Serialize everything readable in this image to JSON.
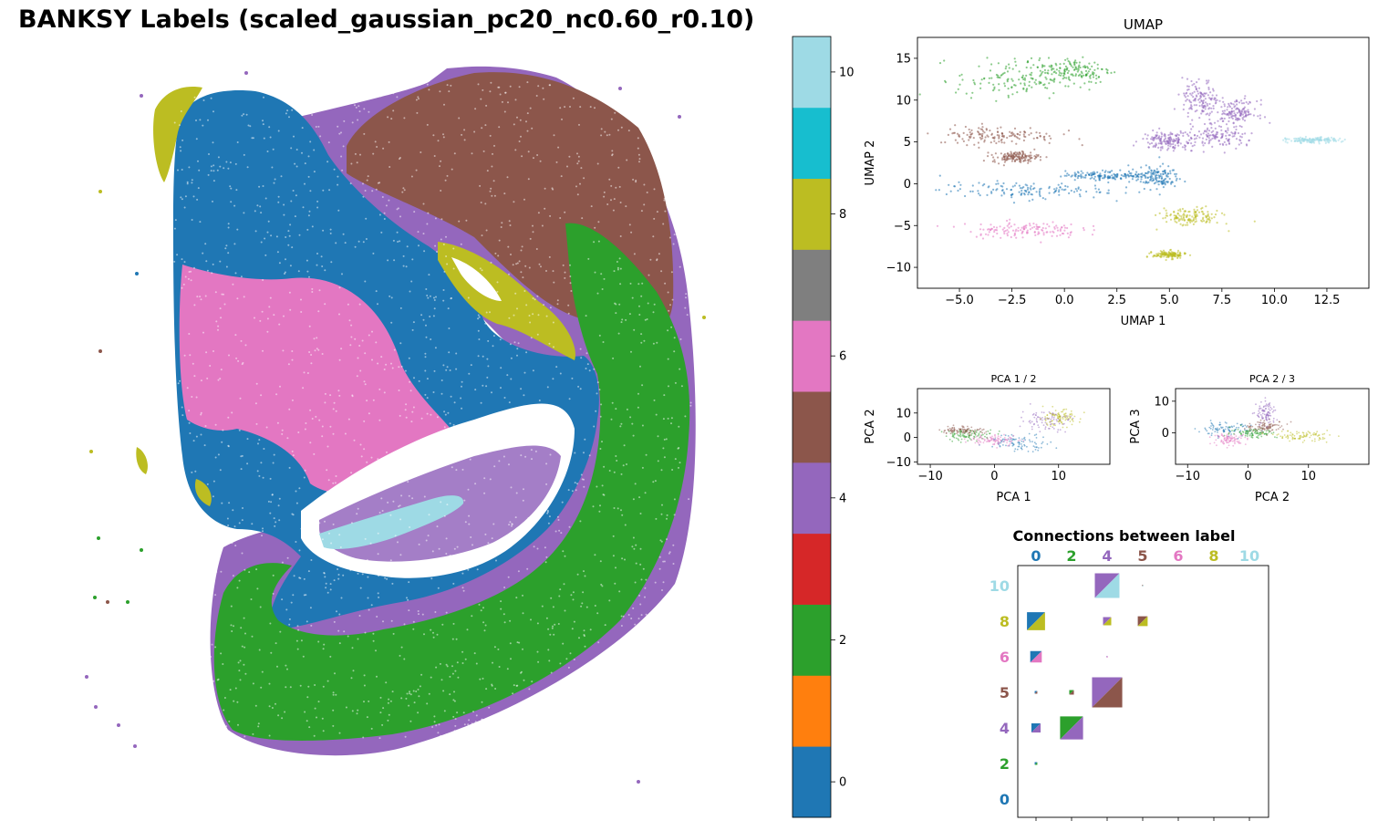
{
  "title": "BANKSY Labels (scaled_gaussian_pc20_nc0.60_r0.10)",
  "chart_data": [
    {
      "type": "scatter",
      "panel": "spatial",
      "title": "BANKSY Labels (scaled_gaussian_pc20_nc0.60_r0.10)",
      "xlabel": "",
      "ylabel": "",
      "axes_visible": false,
      "regions": [
        {
          "label": 4,
          "color": "#9467bd",
          "description": "outer rim"
        },
        {
          "label": 5,
          "color": "#8c564b"
        },
        {
          "label": 0,
          "color": "#1f77b4"
        },
        {
          "label": 6,
          "color": "#e377c2"
        },
        {
          "label": 2,
          "color": "#2ca02c"
        },
        {
          "label": 8,
          "color": "#bcbd22"
        },
        {
          "label": 10,
          "color": "#9edae5"
        }
      ]
    },
    {
      "type": "colorbar",
      "panel": "colorbar",
      "range": [
        -0.5,
        10.5
      ],
      "segments": [
        {
          "label": 0,
          "color": "#1f77b4"
        },
        {
          "label": 1,
          "color": "#ff7f0e"
        },
        {
          "label": 2,
          "color": "#2ca02c"
        },
        {
          "label": 3,
          "color": "#d62728"
        },
        {
          "label": 4,
          "color": "#9467bd"
        },
        {
          "label": 5,
          "color": "#8c564b"
        },
        {
          "label": 6,
          "color": "#e377c2"
        },
        {
          "label": 7,
          "color": "#7f7f7f"
        },
        {
          "label": 8,
          "color": "#bcbd22"
        },
        {
          "label": 9,
          "color": "#17becf"
        },
        {
          "label": 10,
          "color": "#9edae5"
        }
      ],
      "ticks": [
        0,
        2,
        4,
        6,
        8,
        10
      ]
    },
    {
      "type": "scatter",
      "panel": "umap",
      "title": "UMAP",
      "xlabel": "UMAP 1",
      "ylabel": "UMAP 2",
      "xlim": [
        -7,
        14.5
      ],
      "ylim": [
        -12.5,
        17.5
      ],
      "xticks": [
        -5.0,
        -2.5,
        0.0,
        2.5,
        5.0,
        7.5,
        10.0,
        12.5
      ],
      "yticks": [
        -10,
        -5,
        0,
        5,
        10,
        15
      ],
      "clusters": [
        {
          "label": 2,
          "color": "#2ca02c",
          "x": -2.5,
          "y": 12.5,
          "sx": 2.4,
          "sy": 2.2
        },
        {
          "label": 2,
          "color": "#2ca02c",
          "x": 0.5,
          "y": 13.5,
          "sx": 1.6,
          "sy": 1.4
        },
        {
          "label": 5,
          "color": "#8c564b",
          "x": -3.2,
          "y": 5.8,
          "sx": 2.6,
          "sy": 1.0
        },
        {
          "label": 5,
          "color": "#8c564b",
          "x": -2.3,
          "y": 3.2,
          "sx": 1.0,
          "sy": 0.6
        },
        {
          "label": 0,
          "color": "#1f77b4",
          "x": -2.0,
          "y": -0.8,
          "sx": 3.6,
          "sy": 0.9
        },
        {
          "label": 0,
          "color": "#1f77b4",
          "x": 4.3,
          "y": 0.8,
          "sx": 1.1,
          "sy": 1.2
        },
        {
          "label": 0,
          "color": "#1f77b4",
          "x": 2.0,
          "y": 1.0,
          "sx": 1.8,
          "sy": 0.5
        },
        {
          "label": 6,
          "color": "#e377c2",
          "x": -2.0,
          "y": -5.5,
          "sx": 2.5,
          "sy": 0.9
        },
        {
          "label": 4,
          "color": "#9467bd",
          "x": 6.5,
          "y": 10.0,
          "sx": 0.8,
          "sy": 2.2
        },
        {
          "label": 4,
          "color": "#9467bd",
          "x": 7.3,
          "y": 5.5,
          "sx": 1.7,
          "sy": 1.2
        },
        {
          "label": 4,
          "color": "#9467bd",
          "x": 4.8,
          "y": 5.2,
          "sx": 1.0,
          "sy": 1.0
        },
        {
          "label": 4,
          "color": "#9467bd",
          "x": 8.2,
          "y": 8.5,
          "sx": 0.9,
          "sy": 1.3
        },
        {
          "label": 8,
          "color": "#bcbd22",
          "x": 6.0,
          "y": -4.0,
          "sx": 1.3,
          "sy": 1.0
        },
        {
          "label": 8,
          "color": "#bcbd22",
          "x": 5.0,
          "y": -8.5,
          "sx": 0.7,
          "sy": 0.4
        },
        {
          "label": 10,
          "color": "#9edae5",
          "x": 11.8,
          "y": 5.2,
          "sx": 1.1,
          "sy": 0.3
        }
      ]
    },
    {
      "type": "scatter",
      "panel": "pca12",
      "title": "PCA 1 / 2",
      "xlabel": "PCA 1",
      "ylabel": "PCA 2",
      "xlim": [
        -12,
        18
      ],
      "ylim": [
        -11,
        20
      ],
      "xticks": [
        -10,
        0,
        10
      ],
      "yticks": [
        -10,
        0,
        10
      ],
      "clusters": [
        {
          "label": 0,
          "color": "#1f77b4",
          "x": 4,
          "y": -2,
          "sx": 4.5,
          "sy": 3.0
        },
        {
          "label": 2,
          "color": "#2ca02c",
          "x": -4,
          "y": 1,
          "sx": 3.5,
          "sy": 2.0
        },
        {
          "label": 5,
          "color": "#8c564b",
          "x": -5,
          "y": 3,
          "sx": 3.0,
          "sy": 1.5
        },
        {
          "label": 6,
          "color": "#e377c2",
          "x": 0,
          "y": -1,
          "sx": 3.5,
          "sy": 2.0
        },
        {
          "label": 4,
          "color": "#9467bd",
          "x": 8,
          "y": 7,
          "sx": 3.5,
          "sy": 4.0
        },
        {
          "label": 8,
          "color": "#bcbd22",
          "x": 10,
          "y": 8,
          "sx": 3.0,
          "sy": 3.0
        }
      ]
    },
    {
      "type": "scatter",
      "panel": "pca23",
      "title": "PCA 2 / 3",
      "xlabel": "PCA 2",
      "ylabel": "PCA 3",
      "xlim": [
        -12,
        20
      ],
      "ylim": [
        -10,
        14
      ],
      "xticks": [
        -10,
        0,
        10
      ],
      "yticks": [
        0,
        10
      ],
      "clusters": [
        {
          "label": 0,
          "color": "#1f77b4",
          "x": -4,
          "y": 1,
          "sx": 4.0,
          "sy": 2.0
        },
        {
          "label": 6,
          "color": "#e377c2",
          "x": -3,
          "y": -2,
          "sx": 2.5,
          "sy": 1.5
        },
        {
          "label": 2,
          "color": "#2ca02c",
          "x": 1,
          "y": 0,
          "sx": 3.5,
          "sy": 1.5
        },
        {
          "label": 5,
          "color": "#8c564b",
          "x": 3,
          "y": 2,
          "sx": 3.0,
          "sy": 1.5
        },
        {
          "label": 4,
          "color": "#9467bd",
          "x": 3,
          "y": 6,
          "sx": 1.5,
          "sy": 3.5
        },
        {
          "label": 8,
          "color": "#bcbd22",
          "x": 9,
          "y": -1,
          "sx": 4.0,
          "sy": 1.5
        }
      ]
    },
    {
      "type": "heatmap",
      "panel": "connections",
      "title": "Connections between label",
      "labels": [
        0,
        2,
        4,
        5,
        6,
        8,
        10
      ],
      "label_colors": [
        "#1f77b4",
        "#2ca02c",
        "#9467bd",
        "#8c564b",
        "#e377c2",
        "#bcbd22",
        "#9edae5"
      ],
      "cells": [
        {
          "row": 10,
          "col": 4,
          "size": 0.75
        },
        {
          "row": 10,
          "col": 5,
          "size": 0.03
        },
        {
          "row": 8,
          "col": 0,
          "size": 0.55
        },
        {
          "row": 8,
          "col": 4,
          "size": 0.25
        },
        {
          "row": 8,
          "col": 5,
          "size": 0.3
        },
        {
          "row": 6,
          "col": 0,
          "size": 0.35
        },
        {
          "row": 6,
          "col": 4,
          "size": 0.03
        },
        {
          "row": 5,
          "col": 0,
          "size": 0.08
        },
        {
          "row": 5,
          "col": 2,
          "size": 0.14
        },
        {
          "row": 5,
          "col": 4,
          "size": 0.92
        },
        {
          "row": 4,
          "col": 0,
          "size": 0.28
        },
        {
          "row": 4,
          "col": 2,
          "size": 0.7
        },
        {
          "row": 2,
          "col": 0,
          "size": 0.08
        }
      ]
    }
  ]
}
